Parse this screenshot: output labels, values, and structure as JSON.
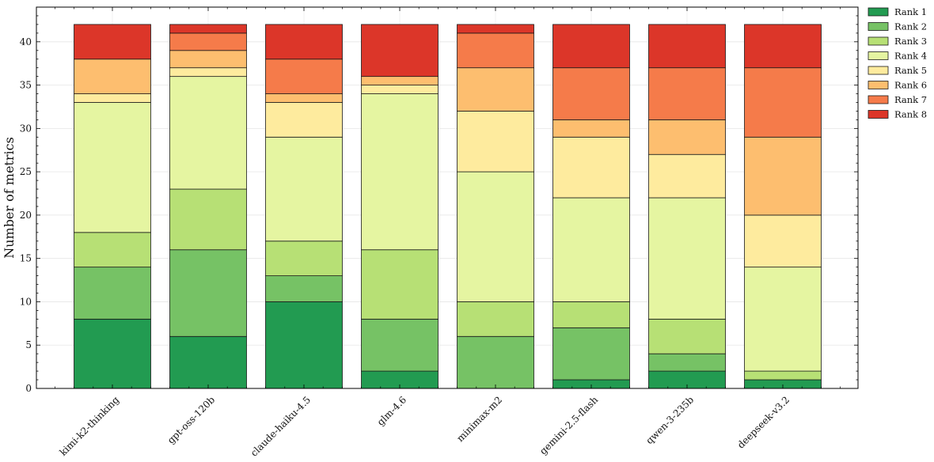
{
  "chart_data": {
    "type": "bar",
    "stacked": true,
    "title": "",
    "xlabel": "",
    "ylabel": "Number of metrics",
    "ylim": [
      0,
      44
    ],
    "yticks": [
      0,
      5,
      10,
      15,
      20,
      25,
      30,
      35,
      40
    ],
    "grid": true,
    "legend_position": "outside-top-right",
    "categories": [
      "kimi-k2-thinking",
      "gpt-oss-120b",
      "claude-haiku-4.5",
      "glm-4.6",
      "minimax-m2",
      "gemini-2.5-flash",
      "qwen-3-235b",
      "deepseek-v3.2"
    ],
    "series": [
      {
        "name": "Rank 1",
        "color": "#229b51",
        "values": [
          8,
          6,
          10,
          2,
          0,
          1,
          2,
          1
        ]
      },
      {
        "name": "Rank 2",
        "color": "#76c265",
        "values": [
          6,
          10,
          3,
          6,
          6,
          6,
          2,
          0
        ]
      },
      {
        "name": "Rank 3",
        "color": "#b7e075",
        "values": [
          4,
          7,
          4,
          8,
          4,
          3,
          4,
          1
        ]
      },
      {
        "name": "Rank 4",
        "color": "#e5f5a1",
        "values": [
          15,
          13,
          12,
          18,
          15,
          12,
          14,
          12
        ]
      },
      {
        "name": "Rank 5",
        "color": "#feeb9e",
        "values": [
          1,
          1,
          4,
          1,
          7,
          7,
          5,
          6
        ]
      },
      {
        "name": "Rank 6",
        "color": "#fdbe6f",
        "values": [
          4,
          2,
          1,
          1,
          5,
          2,
          4,
          9
        ]
      },
      {
        "name": "Rank 7",
        "color": "#f57b4a",
        "values": [
          0,
          2,
          4,
          0,
          4,
          6,
          6,
          8
        ]
      },
      {
        "name": "Rank 8",
        "color": "#dc3629",
        "values": [
          4,
          1,
          4,
          6,
          1,
          5,
          5,
          5
        ]
      }
    ]
  }
}
